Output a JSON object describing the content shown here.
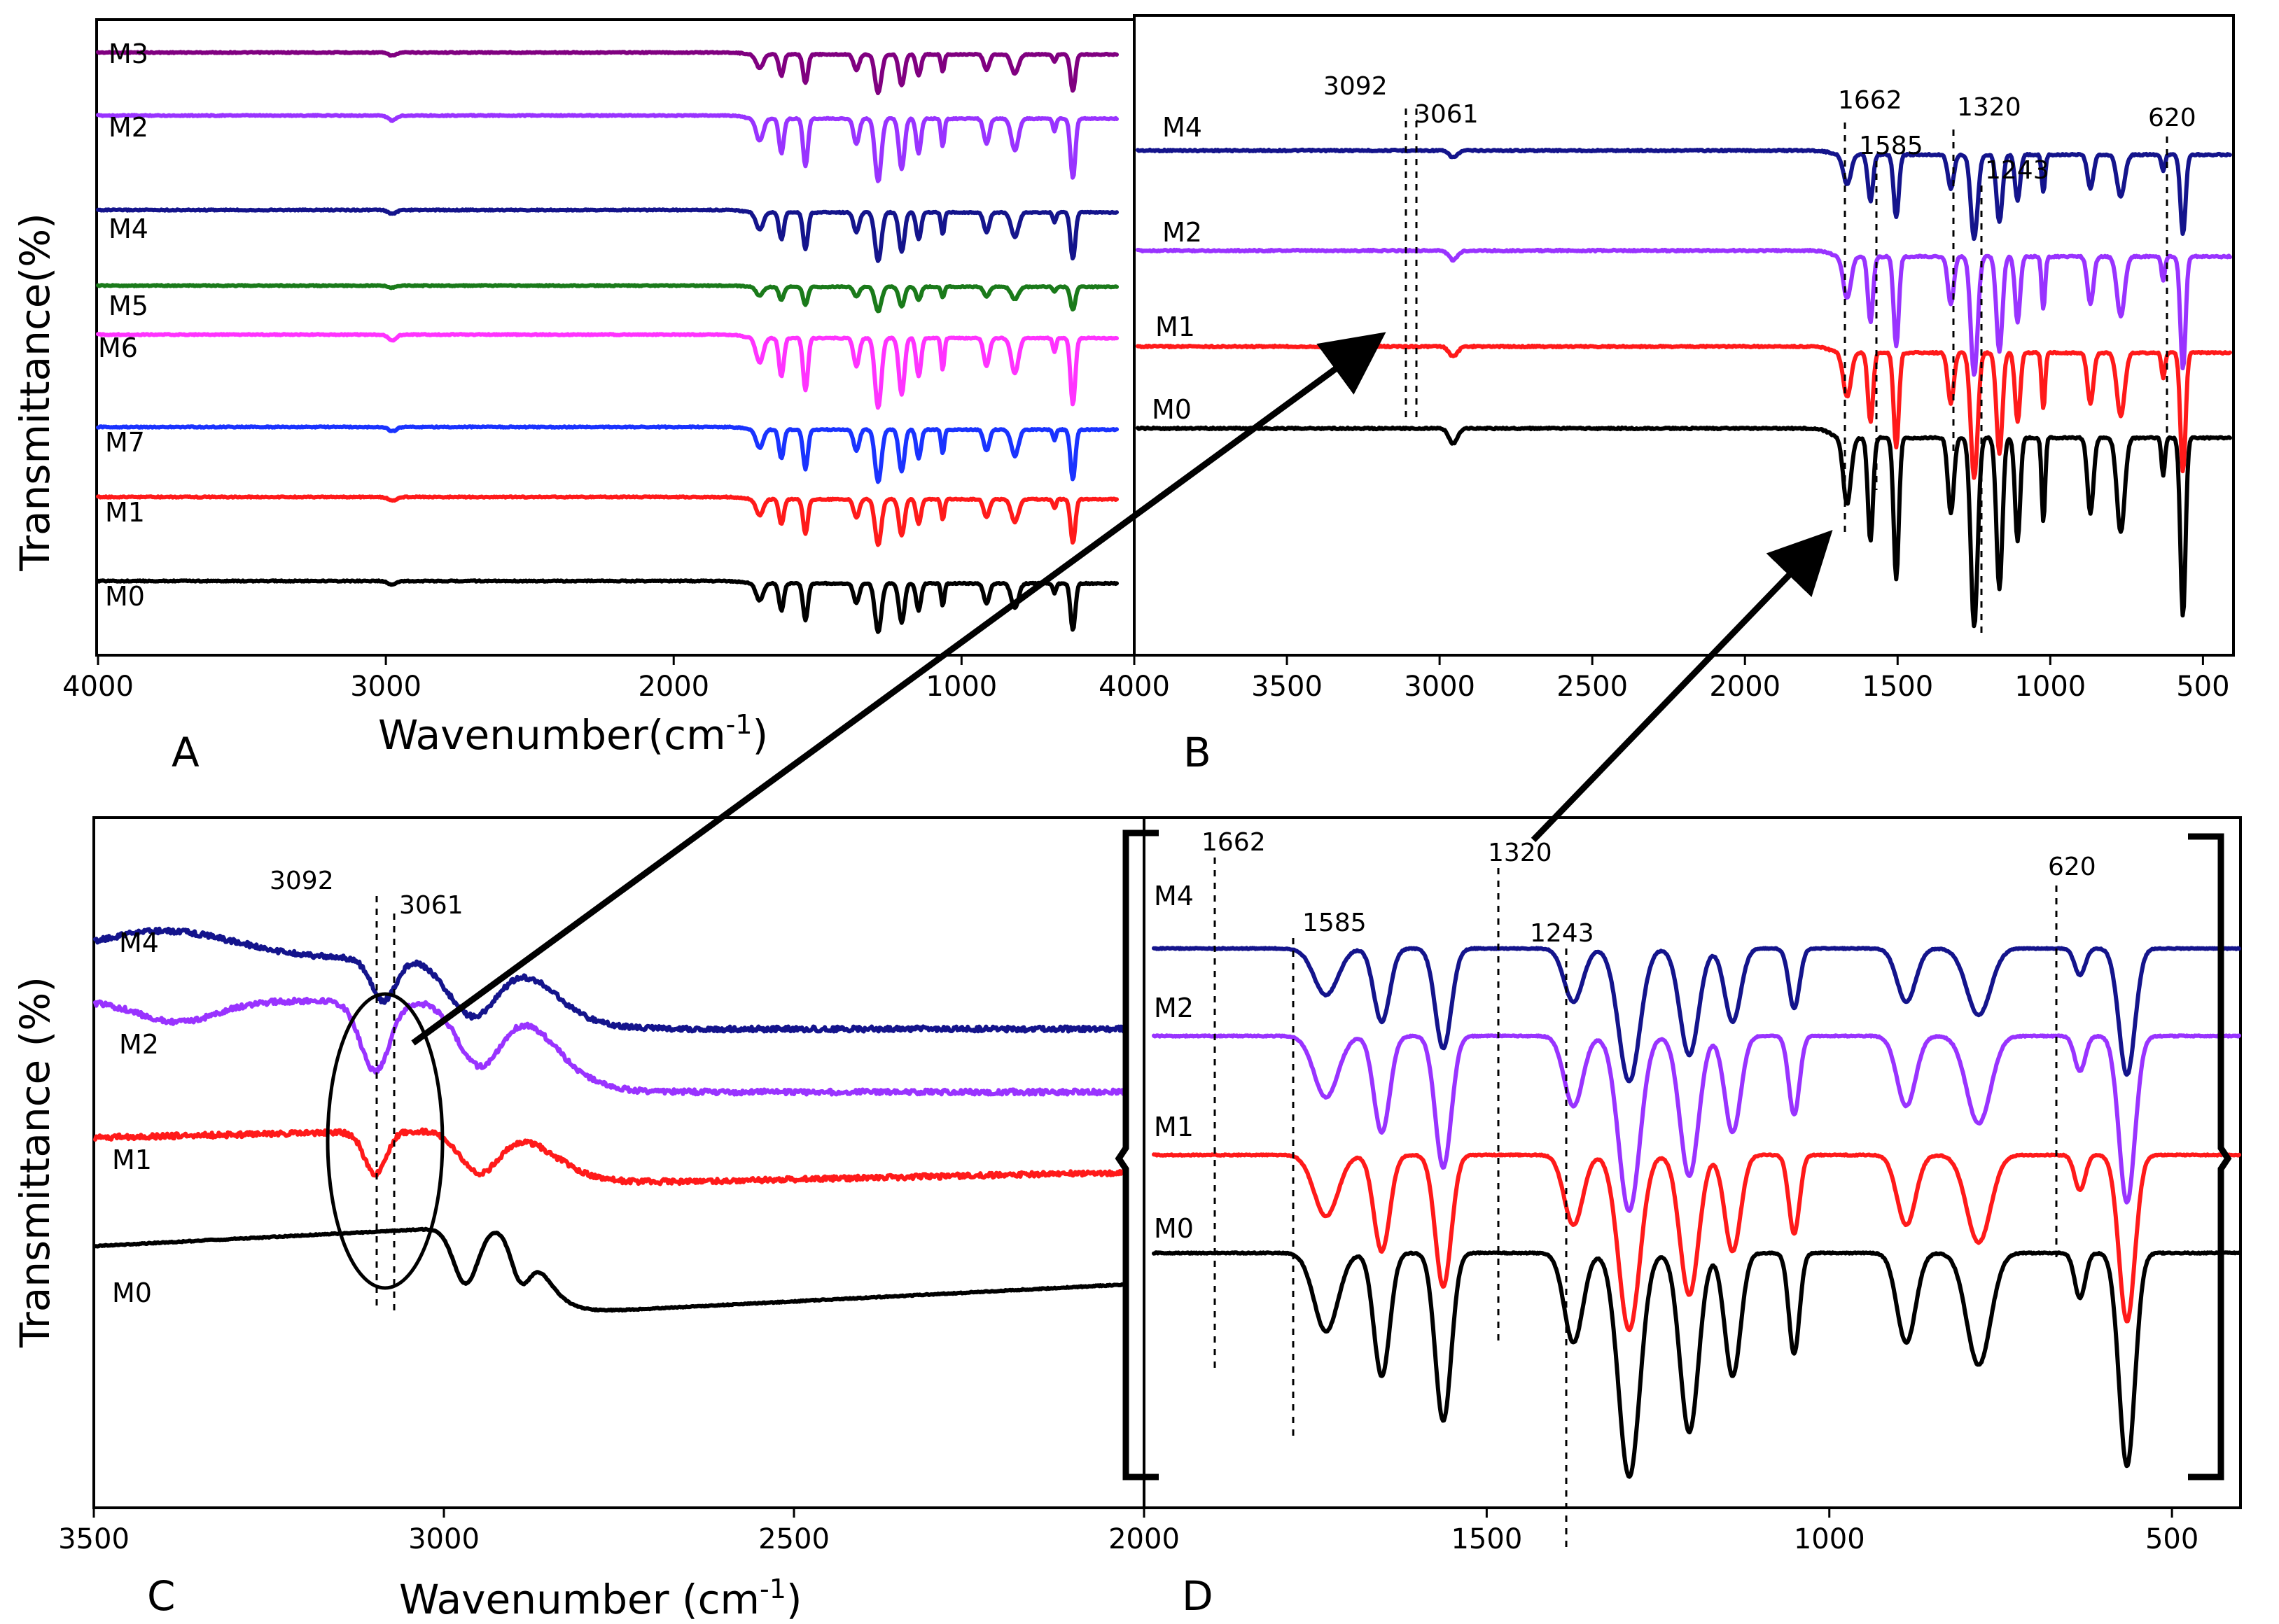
{
  "colors": {
    "M0": "#000000",
    "M1": "#ff1a1a",
    "M2": "#9933ff",
    "M3": "#800080",
    "M4": "#14148c",
    "M5": "#1a7a1a",
    "M6": "#ff33ff",
    "M7": "#1a33ff"
  },
  "chart_data": [
    {
      "panel": "A",
      "type": "line",
      "title": "",
      "xlabel": "Wavenumber(cm⁻¹)",
      "ylabel": "Transmittance(%)",
      "xlim": [
        4000,
        400
      ],
      "xticks": [
        4000,
        3000,
        2000,
        1000
      ],
      "series_order_top_to_bottom": [
        "M3",
        "M2",
        "M4",
        "M5",
        "M6",
        "M7",
        "M1",
        "M0"
      ],
      "series": [
        {
          "name": "M3",
          "baseline": 100
        },
        {
          "name": "M2",
          "baseline": 100
        },
        {
          "name": "M4",
          "baseline": 100
        },
        {
          "name": "M5",
          "baseline": 100
        },
        {
          "name": "M6",
          "baseline": 100
        },
        {
          "name": "M7",
          "baseline": 100
        },
        {
          "name": "M1",
          "baseline": 100
        },
        {
          "name": "M0",
          "baseline": 100
        }
      ],
      "peaks": [
        {
          "x": 1662,
          "depth": 0.35,
          "width": 18
        },
        {
          "x": 1585,
          "depth": 0.55,
          "width": 12
        },
        {
          "x": 1500,
          "depth": 0.75,
          "width": 12
        },
        {
          "x": 1320,
          "depth": 0.4,
          "width": 14
        },
        {
          "x": 1243,
          "depth": 1.0,
          "width": 16
        },
        {
          "x": 1160,
          "depth": 0.8,
          "width": 14
        },
        {
          "x": 1100,
          "depth": 0.55,
          "width": 12
        },
        {
          "x": 1015,
          "depth": 0.45,
          "width": 8
        },
        {
          "x": 860,
          "depth": 0.4,
          "width": 14
        },
        {
          "x": 760,
          "depth": 0.5,
          "width": 18
        },
        {
          "x": 620,
          "depth": 0.2,
          "width": 8
        },
        {
          "x": 555,
          "depth": 0.95,
          "width": 12
        },
        {
          "x": 2960,
          "depth": 0.08,
          "width": 20
        }
      ]
    },
    {
      "panel": "B",
      "type": "line",
      "title": "",
      "xlabel": "",
      "ylabel": "",
      "xlim": [
        4000,
        400
      ],
      "xticks": [
        4000,
        3500,
        3000,
        2500,
        2000,
        1500,
        1000,
        500
      ],
      "series_order_top_to_bottom": [
        "M4",
        "M2",
        "M1",
        "M0"
      ],
      "series": [
        {
          "name": "M4"
        },
        {
          "name": "M2"
        },
        {
          "name": "M1"
        },
        {
          "name": "M0"
        }
      ],
      "annotations": [
        "3092",
        "3061",
        "1662",
        "1585",
        "1320",
        "1243",
        "620"
      ]
    },
    {
      "panel": "C",
      "type": "line",
      "title": "",
      "xlabel": "Wavenumber (cm⁻¹)",
      "ylabel": "Transmittance (%)",
      "xlim": [
        3500,
        2000
      ],
      "xticks": [
        3500,
        3000,
        2500,
        2000
      ],
      "series_order_top_to_bottom": [
        "M4",
        "M2",
        "M1",
        "M0"
      ],
      "series": [
        {
          "name": "M4"
        },
        {
          "name": "M2"
        },
        {
          "name": "M1"
        },
        {
          "name": "M0"
        }
      ],
      "annotations": [
        "3092",
        "3061"
      ]
    },
    {
      "panel": "D",
      "type": "line",
      "title": "",
      "xlabel": "",
      "ylabel": "",
      "xlim": [
        2000,
        400
      ],
      "xticks": [
        1500,
        1000,
        500
      ],
      "series_order_top_to_bottom": [
        "M4",
        "M2",
        "M1",
        "M0"
      ],
      "series": [
        {
          "name": "M4"
        },
        {
          "name": "M2"
        },
        {
          "name": "M1"
        },
        {
          "name": "M0"
        }
      ],
      "annotations": [
        "1662",
        "1585",
        "1320",
        "1243",
        "620"
      ]
    }
  ],
  "labels": {
    "panel_a": "A",
    "panel_b": "B",
    "panel_c": "C",
    "panel_d": "D",
    "ab_xlabel_main": "Wavenumber(cm",
    "ab_xlabel_sup": "-1",
    "ab_xlabel_end": ")",
    "c_xlabel_main": "Wavenumber (cm",
    "c_xlabel_sup": "-1",
    "c_xlabel_end": ")",
    "a_ylabel": "Transmittance(%)",
    "c_ylabel": "Transmittance (%)"
  }
}
